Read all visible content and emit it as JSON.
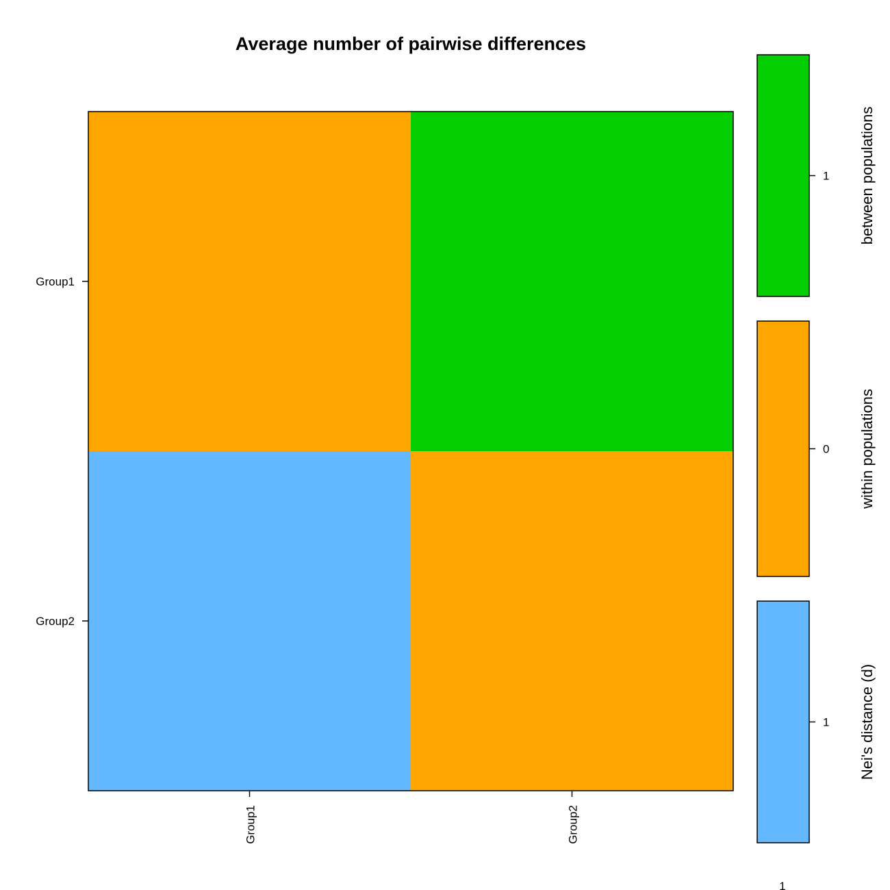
{
  "chart_data": {
    "type": "heatmap",
    "title": "Average number of pairwise differences",
    "rows": [
      "Group1",
      "Group2"
    ],
    "columns": [
      "Group1",
      "Group2"
    ],
    "cells": [
      {
        "row": "Group1",
        "col": "Group1",
        "category": "within populations",
        "color": "#FFA500"
      },
      {
        "row": "Group1",
        "col": "Group2",
        "category": "between populations",
        "color": "#04CD00"
      },
      {
        "row": "Group2",
        "col": "Group1",
        "category": "Nei's distance (d)",
        "color": "#63B8FF"
      },
      {
        "row": "Group2",
        "col": "Group2",
        "category": "within populations",
        "color": "#FFA500"
      }
    ],
    "legend": [
      {
        "label": "between populations",
        "color": "#04CD00",
        "tick": "1"
      },
      {
        "label": "within populations",
        "color": "#FFA500",
        "tick": "0"
      },
      {
        "label": "Nei's distance (d)",
        "color": "#63B8FF",
        "tick": "1"
      }
    ],
    "footnote": "1"
  }
}
